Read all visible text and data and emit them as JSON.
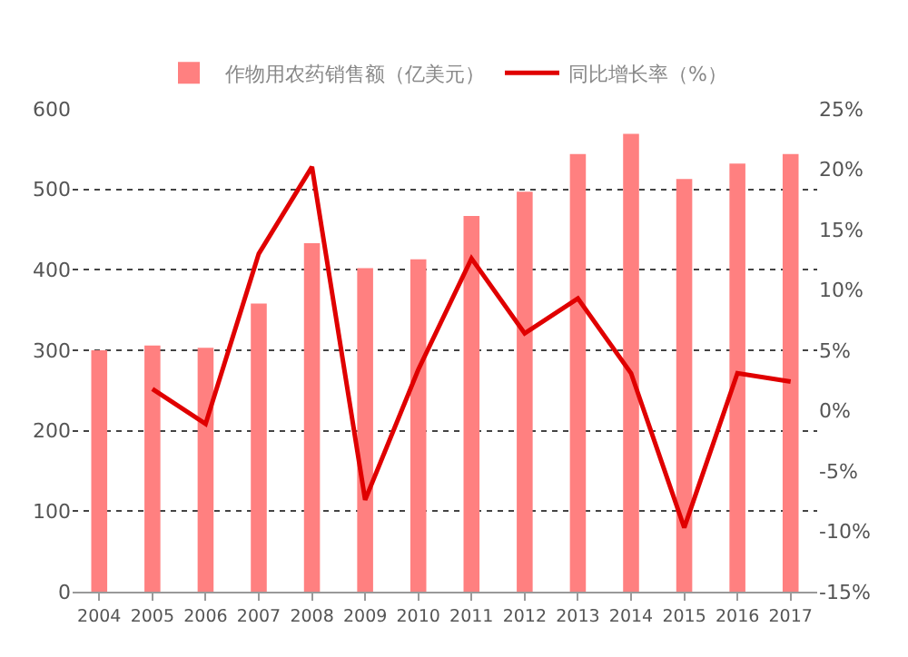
{
  "chart_data": {
    "type": "bar",
    "categories": [
      "2004",
      "2005",
      "2006",
      "2007",
      "2008",
      "2009",
      "2010",
      "2011",
      "2012",
      "2013",
      "2014",
      "2015",
      "2016",
      "2017"
    ],
    "series": [
      {
        "name": "作物用农药销售额（亿美元）",
        "color": "#ff8080",
        "values": [
          300,
          306,
          303,
          358,
          433,
          402,
          413,
          467,
          497,
          544,
          569,
          513,
          532,
          544
        ]
      },
      {
        "name": "同比增长率（%）",
        "type": "line",
        "axis": "y2",
        "color": "#e00000",
        "values": [
          null,
          1.8,
          -1.1,
          13,
          20.2,
          -7.4,
          3.4,
          12.6,
          6.4,
          9.3,
          3.1,
          -9.7,
          3.1,
          2.4
        ]
      }
    ],
    "ylim": [
      0,
      600
    ],
    "yticks": [
      0,
      100,
      200,
      300,
      400,
      500,
      600
    ],
    "y2lim": [
      -15,
      25
    ],
    "y2ticks": [
      {
        "value": -15,
        "label": "-15%"
      },
      {
        "value": -10,
        "label": "-10%"
      },
      {
        "value": -5,
        "label": "-5%"
      },
      {
        "value": 0,
        "label": "0%"
      },
      {
        "value": 5,
        "label": "5%"
      },
      {
        "value": 10,
        "label": "10%"
      },
      {
        "value": 15,
        "label": "15%"
      },
      {
        "value": 20,
        "label": "20%"
      },
      {
        "value": 25,
        "label": "25%"
      }
    ],
    "grid": "y",
    "legend": "top",
    "marker": "none",
    "line_style": "solid"
  }
}
